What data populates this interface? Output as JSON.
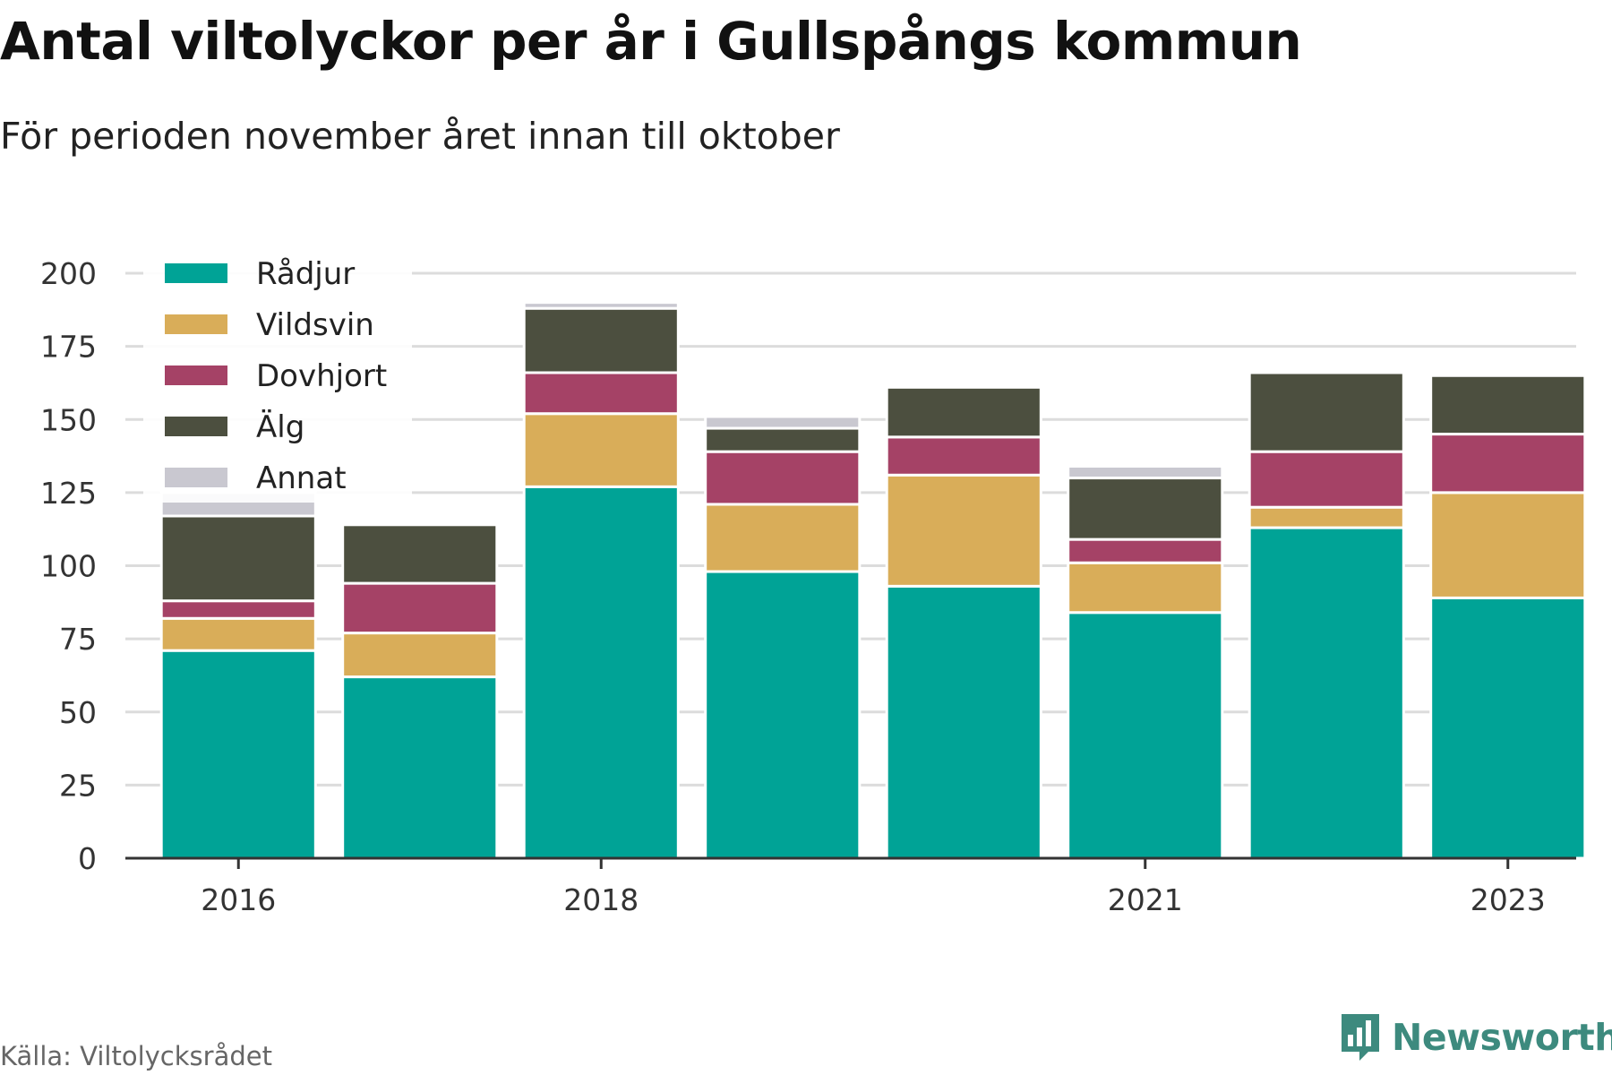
{
  "header": {
    "title": "Antal viltolyckor per år i Gullspångs kommun",
    "subtitle": "För perioden november året innan till oktober"
  },
  "footer": {
    "source": "Källa: Viltolycksrådet",
    "brand": "Newsworthy"
  },
  "chart_data": {
    "type": "bar",
    "stacked": true,
    "title": "Antal viltolyckor per år i Gullspångs kommun",
    "subtitle": "För perioden november året innan till oktober",
    "categories": [
      "2016",
      "2017",
      "2018",
      "2019",
      "2020",
      "2021",
      "2022",
      "2023"
    ],
    "x_tick_labels": [
      "2016",
      "2018",
      "2021",
      "2023"
    ],
    "y_ticks": [
      "0",
      "25",
      "50",
      "75",
      "100",
      "125",
      "150",
      "175",
      "200"
    ],
    "ylim": [
      0,
      200
    ],
    "grid": true,
    "legend_position": "top-left",
    "series": [
      {
        "name": "Rådjur",
        "color": "#00a396",
        "values": [
          71,
          62,
          127,
          98,
          93,
          84,
          113,
          89
        ]
      },
      {
        "name": "Vildsvin",
        "color": "#d9ad59",
        "values": [
          11,
          15,
          25,
          23,
          38,
          17,
          7,
          36
        ]
      },
      {
        "name": "Dovhjort",
        "color": "#a54266",
        "values": [
          6,
          17,
          14,
          18,
          13,
          8,
          19,
          20
        ]
      },
      {
        "name": "Älg",
        "color": "#4c4f3f",
        "values": [
          29,
          20,
          22,
          8,
          17,
          21,
          27,
          20
        ]
      },
      {
        "name": "Annat",
        "color": "#c9c8d0",
        "values": [
          8,
          0,
          2,
          4,
          0,
          4,
          0,
          0
        ]
      }
    ]
  }
}
